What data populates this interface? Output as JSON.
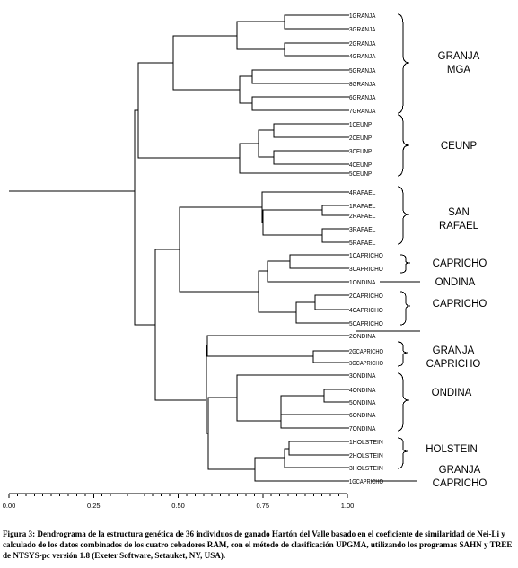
{
  "leaves": [
    "1GRANJA",
    "3GRANJA",
    "2GRANJA",
    "4GRANJA",
    "5GRANJA",
    "8GRANJA",
    "6GRANJA",
    "7GRANJA",
    "1CEUNP",
    "2CEUNP",
    "3CEUNP",
    "4CEUNP",
    "5CEUNP",
    "4RAFAEL",
    "1RAFAEL",
    "2RAFAEL",
    "3RAFAEL",
    "5RAFAEL",
    "1CAPRICHO",
    "3CAPRICHO",
    "1ONDINA",
    "2CAPRICHO",
    "4CAPRICHO",
    "5CAPRICHO",
    "2ONDINA",
    "2GCAPRICHO",
    "3GCAPRICHO",
    "3ONDINA",
    "4ONDINA",
    "5ONDINA",
    "6ONDINA",
    "7ONDINA",
    "1HOLSTEIN",
    "2HOLSTEIN",
    "3HOLSTEIN",
    "1GCAPRICHO"
  ],
  "axis_ticks": [
    "0.00",
    "0.25",
    "0.50",
    "0.75",
    "1.00"
  ],
  "groups": [
    {
      "lines": [
        "GRANJA",
        "MGA"
      ]
    },
    {
      "lines": [
        "CEUNP"
      ]
    },
    {
      "lines": [
        "SAN",
        "RAFAEL"
      ]
    },
    {
      "lines": [
        "CAPRICHO"
      ]
    },
    {
      "lines": [
        "ONDINA"
      ]
    },
    {
      "lines": [
        "CAPRICHO"
      ]
    },
    {
      "lines": [
        "GRANJA",
        "CAPRICHO"
      ]
    },
    {
      "lines": [
        "ONDINA"
      ]
    },
    {
      "lines": [
        "HOLSTEIN"
      ]
    },
    {
      "lines": [
        "GRANJA",
        "CAPRICHO"
      ]
    }
  ],
  "caption": "Figura 3: Dendrograma de la estructura genética de 36 individuos de ganado Hartón del Valle basado en el coeficiente de similaridad de Nei-Li y calculado de los datos combinados de los cuatro cebadores RAM, con el método de clasificación UPGMA, utilizando los programas SAHN y TREE de NTSYS-pc versión 1.8 (Exeter Software, Setauket, NY, USA)."
}
